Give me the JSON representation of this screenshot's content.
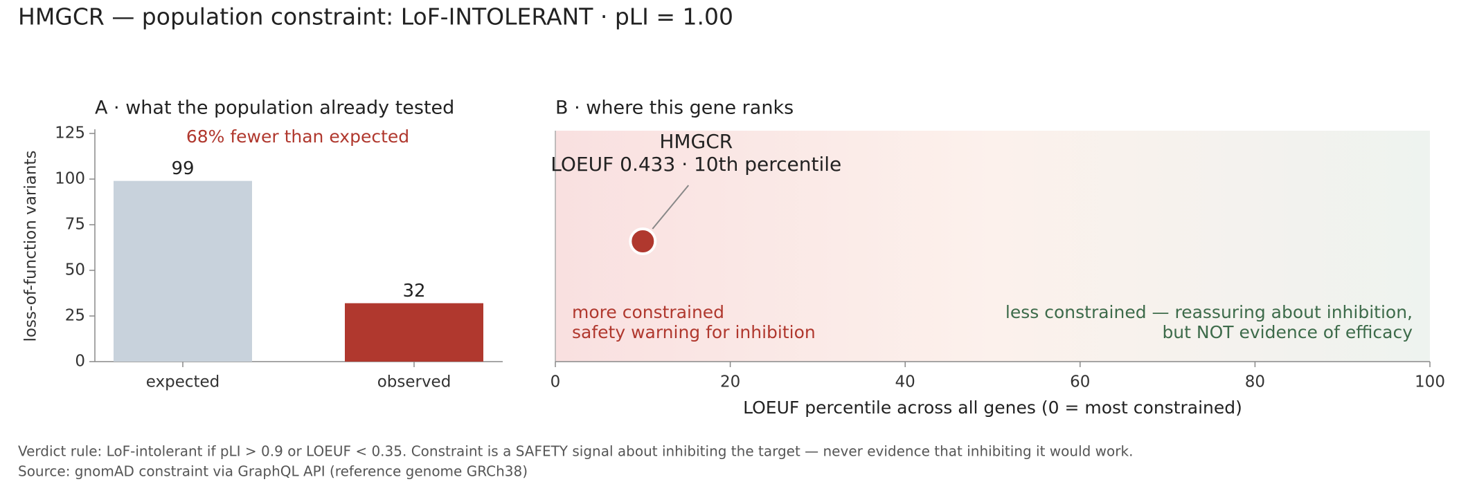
{
  "title": "HMGCR — population constraint: LoF-INTOLERANT   ·   pLI = 1.00",
  "footer": [
    "Verdict rule: LoF-intolerant if pLI > 0.9 or LOEUF < 0.35. Constraint is a SAFETY signal about inhibiting the target — never evidence that inhibiting it would work.",
    "Source: gnomAD constraint via GraphQL API (reference genome GRCh38)"
  ],
  "chart_data": [
    {
      "type": "bar",
      "title": "A · what the population already tested",
      "annotation": "68% fewer than expected",
      "ylabel": "loss-of-function variants",
      "categories": [
        "expected",
        "observed"
      ],
      "values": [
        99,
        32
      ],
      "colors": [
        "#c8d2dc",
        "#b0382e"
      ],
      "ylim": [
        0,
        125
      ],
      "yticks": [
        0,
        25,
        50,
        75,
        100,
        125
      ]
    },
    {
      "type": "scatter",
      "title": "B · where this gene ranks",
      "xlabel": "LOEUF percentile across all genes  (0 = most constrained)",
      "x": [
        10
      ],
      "color": "#b0382e",
      "point_label": [
        "HMGCR",
        "LOEUF 0.433 · 10th percentile"
      ],
      "left_note": [
        "more constrained",
        "safety warning for inhibition"
      ],
      "right_note": [
        "less constrained — reassuring about inhibition,",
        "but NOT evidence of efficacy"
      ],
      "xlim": [
        0,
        100
      ],
      "xticks": [
        0,
        20,
        40,
        60,
        80,
        100
      ]
    }
  ]
}
